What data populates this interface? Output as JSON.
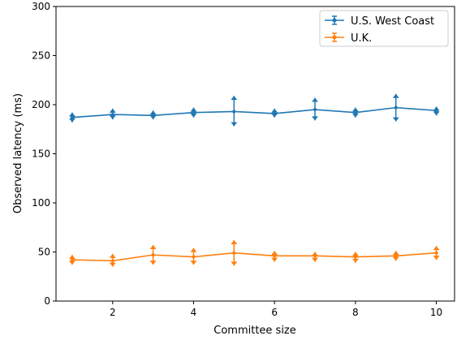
{
  "chart_data": {
    "type": "line",
    "title": "",
    "xlabel": "Committee size",
    "ylabel": "Observed latency (ms)",
    "xlim": [
      0.6,
      10.45
    ],
    "ylim": [
      0,
      300
    ],
    "xticks": [
      2,
      4,
      6,
      8,
      10
    ],
    "yticks": [
      0,
      50,
      100,
      150,
      200,
      250,
      300
    ],
    "x": [
      1,
      2,
      3,
      4,
      5,
      6,
      7,
      8,
      9,
      10
    ],
    "grid": false,
    "legend_position": "top-right",
    "series": [
      {
        "name": "U.S. West Coast",
        "color": "#1f77b4",
        "values": [
          187,
          190,
          189,
          192,
          193,
          191,
          195,
          192,
          197,
          194
        ],
        "err_low": [
          182,
          185,
          185,
          187,
          178,
          187,
          184,
          187,
          183,
          189
        ],
        "err_high": [
          192,
          196,
          194,
          197,
          209,
          196,
          207,
          197,
          211,
          198
        ]
      },
      {
        "name": "U.K.",
        "color": "#ff7f0e",
        "values": [
          42,
          41,
          47,
          45,
          49,
          46,
          46,
          45,
          46,
          49
        ],
        "err_low": [
          37,
          35,
          37,
          37,
          36,
          40,
          40,
          39,
          41,
          42
        ],
        "err_high": [
          47,
          48,
          57,
          54,
          62,
          51,
          50,
          50,
          51,
          56
        ]
      }
    ]
  }
}
